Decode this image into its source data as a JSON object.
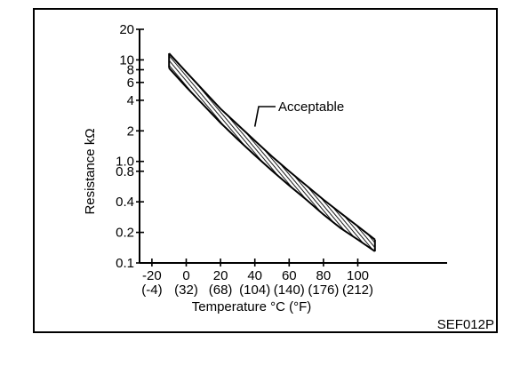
{
  "chart_data": {
    "type": "area",
    "title": "",
    "xlabel": "Temperature °C (°F)",
    "ylabel": "Resistance kΩ",
    "y_scale": "log",
    "xlim": [
      -30,
      115
    ],
    "ylim": [
      0.1,
      20
    ],
    "x_ticks": [
      {
        "value": -20,
        "label": "-20",
        "sub": "(-4)"
      },
      {
        "value": 0,
        "label": "0",
        "sub": "(32)"
      },
      {
        "value": 20,
        "label": "20",
        "sub": "(68)"
      },
      {
        "value": 40,
        "label": "40",
        "sub": "(104)"
      },
      {
        "value": 60,
        "label": "60",
        "sub": "(140)"
      },
      {
        "value": 80,
        "label": "80",
        "sub": "(176)"
      },
      {
        "value": 100,
        "label": "100",
        "sub": "(212)"
      }
    ],
    "y_ticks": [
      {
        "value": 20,
        "label": "20"
      },
      {
        "value": 10,
        "label": "10"
      },
      {
        "value": 8,
        "label": "8"
      },
      {
        "value": 6,
        "label": "6"
      },
      {
        "value": 4,
        "label": "4"
      },
      {
        "value": 2,
        "label": "2"
      },
      {
        "value": 1,
        "label": "1.0"
      },
      {
        "value": 0.8,
        "label": "0.8"
      },
      {
        "value": 0.4,
        "label": "0.4"
      },
      {
        "value": 0.2,
        "label": "0.2"
      },
      {
        "value": 0.1,
        "label": "0.1"
      }
    ],
    "band": {
      "name": "Acceptable",
      "x": [
        -10,
        0,
        10,
        20,
        30,
        40,
        50,
        60,
        70,
        80,
        90,
        100,
        110
      ],
      "upper": [
        11.6,
        7.6,
        5.0,
        3.3,
        2.3,
        1.6,
        1.12,
        0.8,
        0.58,
        0.42,
        0.31,
        0.23,
        0.17
      ],
      "lower": [
        8.3,
        5.4,
        3.6,
        2.4,
        1.65,
        1.15,
        0.81,
        0.58,
        0.42,
        0.3,
        0.22,
        0.17,
        0.13
      ]
    },
    "annotation": {
      "text": "Acceptable",
      "x": 40,
      "y": 2.2
    },
    "grid": false,
    "legend": "none"
  },
  "figure_code": "SEF012P"
}
